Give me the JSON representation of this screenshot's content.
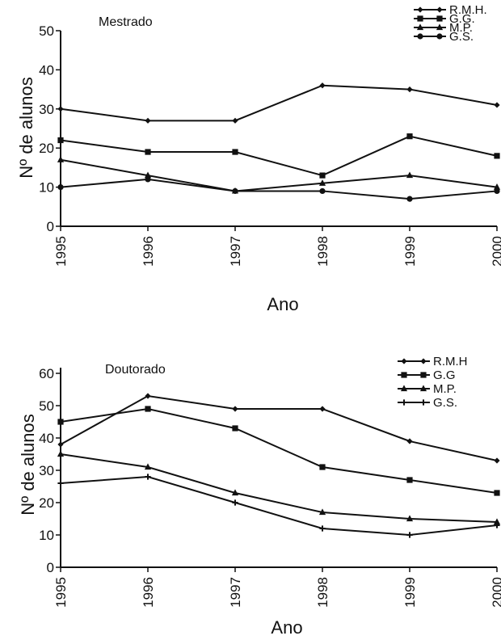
{
  "chart_data": [
    {
      "type": "line",
      "title": "Mestrado",
      "xlabel": "Ano",
      "ylabel": "Nº de alunos",
      "x": [
        "1995",
        "1996",
        "1997",
        "1998",
        "1999",
        "2000"
      ],
      "yticks": [
        "0",
        "10",
        "20",
        "30",
        "40",
        "50"
      ],
      "ylim": [
        0,
        50
      ],
      "legend_position": "top-right",
      "series": [
        {
          "name": "R.M.H.",
          "marker": "diamond",
          "values": [
            30,
            27,
            27,
            36,
            35,
            31
          ]
        },
        {
          "name": "G.G.",
          "marker": "square",
          "values": [
            22,
            19,
            19,
            13,
            23,
            18
          ]
        },
        {
          "name": "M.P.",
          "marker": "triangle",
          "values": [
            17,
            13,
            9,
            11,
            13,
            10
          ]
        },
        {
          "name": "G.S.",
          "marker": "circle",
          "values": [
            10,
            12,
            9,
            9,
            7,
            9
          ]
        }
      ]
    },
    {
      "type": "line",
      "title": "Doutorado",
      "xlabel": "Ano",
      "ylabel": "Nº de alunos",
      "x": [
        "1995",
        "1996",
        "1997",
        "1998",
        "1999",
        "2000"
      ],
      "yticks": [
        "0",
        "10",
        "20",
        "30",
        "40",
        "50",
        "60"
      ],
      "ylim": [
        0,
        60
      ],
      "legend_position": "top-right",
      "series": [
        {
          "name": "R.M.H",
          "marker": "diamond",
          "values": [
            38,
            53,
            49,
            49,
            39,
            33
          ]
        },
        {
          "name": "G.G",
          "marker": "square",
          "values": [
            45,
            49,
            43,
            31,
            27,
            23
          ]
        },
        {
          "name": "M.P.",
          "marker": "triangle",
          "values": [
            35,
            31,
            23,
            17,
            15,
            14
          ]
        },
        {
          "name": "G.S.",
          "marker": "plus",
          "values": [
            26,
            28,
            20,
            12,
            10,
            13
          ]
        }
      ]
    }
  ]
}
